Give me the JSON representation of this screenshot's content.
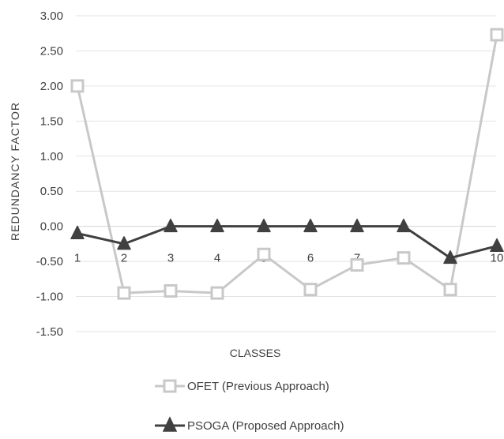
{
  "chart_data": {
    "type": "line",
    "categories": [
      "1",
      "2",
      "3",
      "4",
      "5",
      "6",
      "7",
      "8",
      "",
      "10"
    ],
    "series": [
      {
        "name": "OFET (Previous Approach)",
        "values": [
          2.0,
          -0.95,
          -0.92,
          -0.95,
          -0.4,
          -0.9,
          -0.55,
          -0.45,
          -0.9,
          2.73
        ],
        "color": "#c8c8c8",
        "marker": "square"
      },
      {
        "name": "PSOGA (Proposed Approach)",
        "values": [
          -0.1,
          -0.25,
          0.0,
          0.0,
          0.0,
          0.0,
          0.0,
          0.0,
          -0.45,
          -0.28
        ],
        "color": "#404040",
        "marker": "triangle"
      }
    ],
    "yticks": [
      "3.00",
      "2.50",
      "2.00",
      "1.50",
      "1.00",
      "0.50",
      "0.00",
      "-0.50",
      "-1.00",
      "-1.50"
    ],
    "ylim": [
      -1.5,
      3.0
    ],
    "ylabel": "REDUNDANCY FACTOR",
    "xlabel": "CLASSES",
    "grid": "horizontal",
    "legend": "bottom"
  }
}
